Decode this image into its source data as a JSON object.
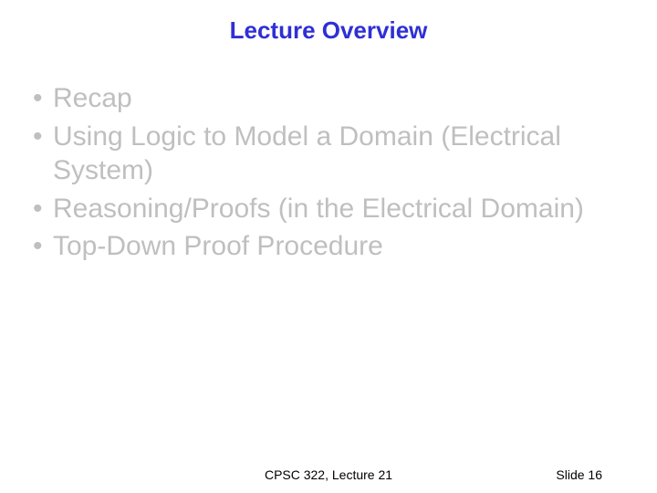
{
  "title": {
    "text": "Lecture Overview",
    "color": "#2f2fd6",
    "fontsize": 26
  },
  "bullets": {
    "items": [
      "Recap",
      "Using Logic to Model a Domain (Electrical System)",
      "Reasoning/Proofs (in the Electrical Domain)",
      "Top-Down Proof Procedure"
    ],
    "color": "#bfbfbf",
    "fontsize": 30,
    "line_height": 1.25
  },
  "footer": {
    "center": "CPSC 322, Lecture 21",
    "right": "Slide 16",
    "color": "#000000",
    "fontsize": 14
  },
  "background_color": "#ffffff"
}
